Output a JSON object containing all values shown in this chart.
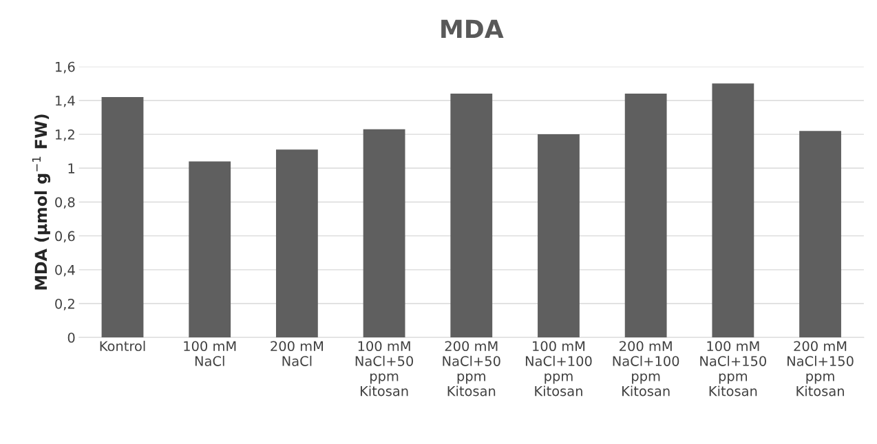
{
  "chart_data": {
    "type": "bar",
    "title": "MDA",
    "ylabel": "MDA (µmol g$^{−1}$ FW)",
    "categories": [
      "Kontrol",
      "100 mM\nNaCl",
      "200 mM\nNaCl",
      "100 mM\nNaCl+50\nppm\nKitosan",
      "200 mM\nNaCl+50\nppm\nKitosan",
      "100 mM\nNaCl+100\nppm\nKitosan",
      "200 mM\nNaCl+100\nppm\nKitosan",
      "100 mM\nNaCl+150\nppm\nKitosan",
      "200 mM\nNaCl+150\nppm\nKitosan"
    ],
    "values": [
      1.42,
      1.04,
      1.11,
      1.23,
      1.44,
      1.2,
      1.44,
      1.5,
      1.22
    ],
    "color": "#5f5f5f",
    "ylim": [
      0,
      1.6
    ],
    "yticks": [
      0,
      {
        "value": 0.2,
        "label": "0,2"
      },
      {
        "value": 0.4,
        "label": "0,4"
      },
      {
        "value": 0.6,
        "label": "0,6"
      },
      {
        "value": 0.8,
        "label": "0,8"
      },
      1,
      {
        "value": 1.2,
        "label": "1,2"
      },
      {
        "value": 1.4,
        "label": "1,4"
      },
      {
        "value": 1.6,
        "label": "1,6"
      }
    ],
    "grid": "y"
  }
}
